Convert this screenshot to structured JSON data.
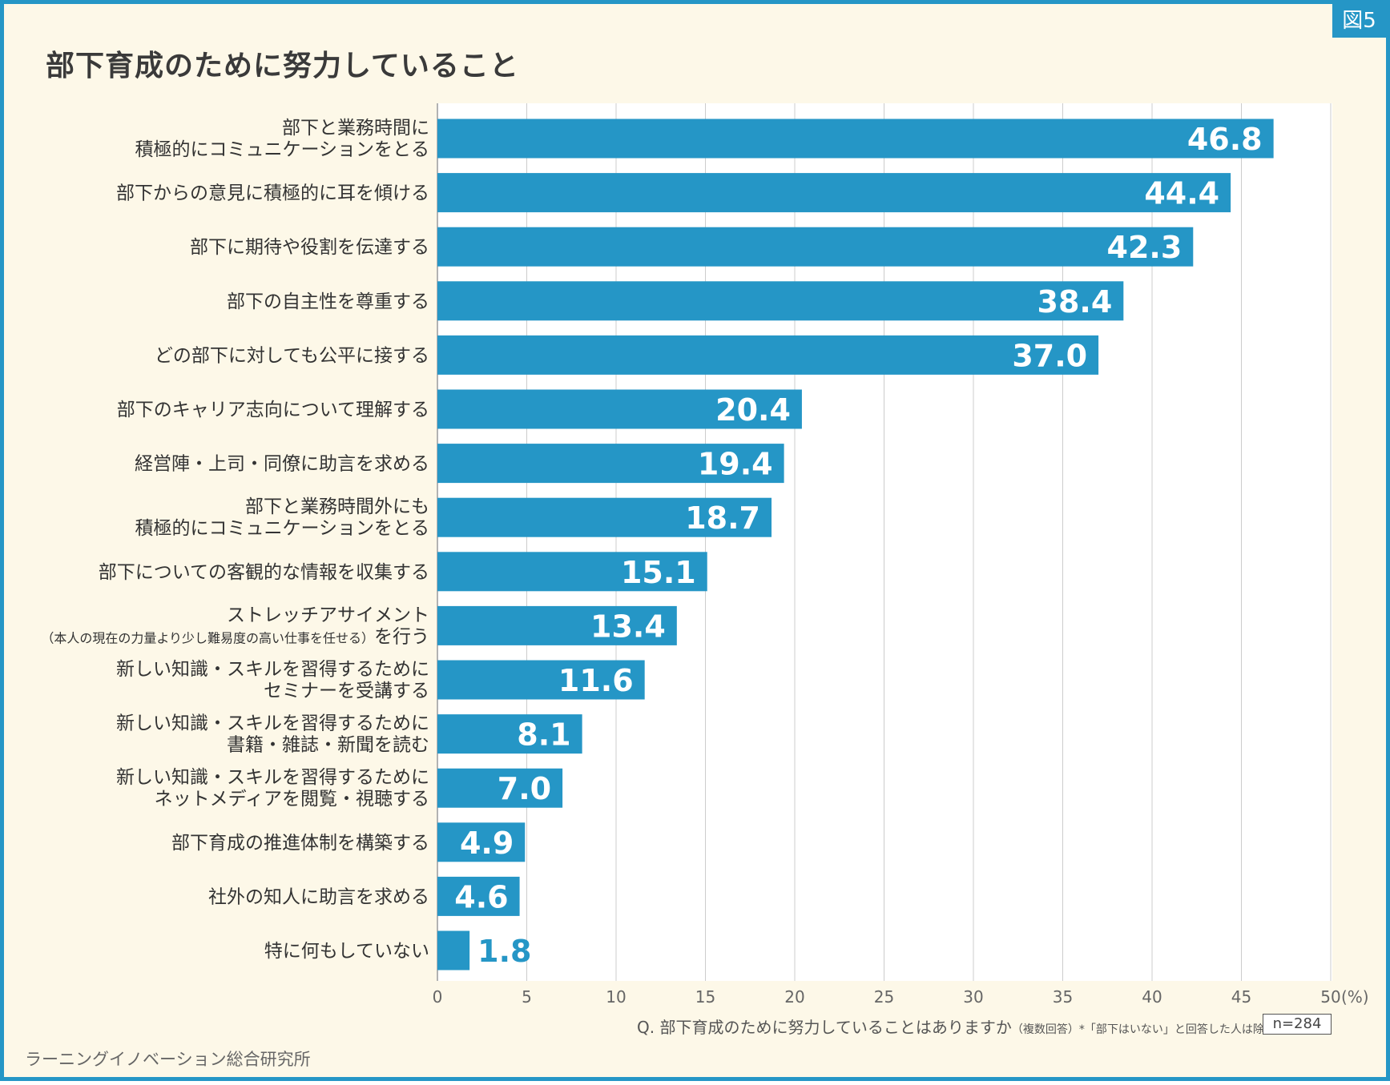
{
  "figure_badge": "図5",
  "colors": {
    "bar": "#2596c6",
    "frame": "#2596c6",
    "background": "#fdf8e8",
    "grid": "#cccccc"
  },
  "chart_data": {
    "type": "bar",
    "orientation": "horizontal",
    "title": "部下育成のために努力していること",
    "unit_label": "(%)",
    "xlim": [
      0,
      50
    ],
    "xticks": [
      0,
      5,
      10,
      15,
      20,
      25,
      30,
      35,
      40,
      45,
      50
    ],
    "grid": true,
    "categories": [
      {
        "lines": [
          "部下と業務時間に",
          "積極的にコミュニケーションをとる"
        ],
        "value": 46.8
      },
      {
        "lines": [
          "部下からの意見に積極的に耳を傾ける"
        ],
        "value": 44.4
      },
      {
        "lines": [
          "部下に期待や役割を伝達する"
        ],
        "value": 42.3
      },
      {
        "lines": [
          "部下の自主性を尊重する"
        ],
        "value": 38.4
      },
      {
        "lines": [
          "どの部下に対しても公平に接する"
        ],
        "value": 37.0
      },
      {
        "lines": [
          "部下のキャリア志向について理解する"
        ],
        "value": 20.4
      },
      {
        "lines": [
          "経営陣・上司・同僚に助言を求める"
        ],
        "value": 19.4
      },
      {
        "lines": [
          "部下と業務時間外にも",
          "積極的にコミュニケーションをとる"
        ],
        "value": 18.7
      },
      {
        "lines": [
          "部下についての客観的な情報を収集する"
        ],
        "value": 15.1
      },
      {
        "lines": [
          "ストレッチアサイメント"
        ],
        "sub_note": "（本人の現在の力量より少し難易度の高い仕事を任せる）",
        "sub_tail": "を行う",
        "value": 13.4
      },
      {
        "lines": [
          "新しい知識・スキルを習得するために",
          "セミナーを受講する"
        ],
        "value": 11.6
      },
      {
        "lines": [
          "新しい知識・スキルを習得するために",
          "書籍・雑誌・新聞を読む"
        ],
        "value": 8.1
      },
      {
        "lines": [
          "新しい知識・スキルを習得するために",
          "ネットメディアを閲覧・視聴する"
        ],
        "value": 7.0
      },
      {
        "lines": [
          "部下育成の推進体制を構築する"
        ],
        "value": 4.9
      },
      {
        "lines": [
          "社外の知人に助言を求める"
        ],
        "value": 4.6
      },
      {
        "lines": [
          "特に何もしていない"
        ],
        "value": 1.8
      }
    ]
  },
  "footnote": {
    "question": "Q. 部下育成のために努力していることはありますか",
    "note": "（複数回答）*「部下はいない」と回答した人は除く",
    "sample": "n=284"
  },
  "source": "ラーニングイノベーション総合研究所"
}
